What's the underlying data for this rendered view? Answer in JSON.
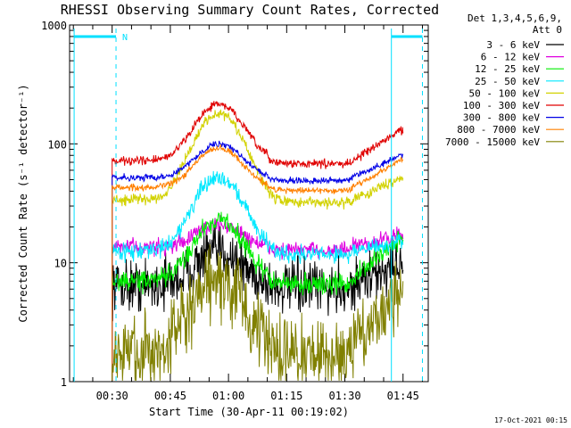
{
  "chart_data": {
    "type": "line",
    "title": "RHESSI Observing Summary Count Rates, Corrected",
    "xlabel": "Start Time (30-Apr-11 00:19:02)",
    "ylabel": "Corrected Count Rate (s⁻¹ detector⁻¹)",
    "yscale": "log",
    "ylim": [
      1,
      1000
    ],
    "xlim_minutes": [
      19.03,
      111.5
    ],
    "x_ticks": [
      {
        "m": 30,
        "label": "00:30"
      },
      {
        "m": 45,
        "label": "00:45"
      },
      {
        "m": 60,
        "label": "01:00"
      },
      {
        "m": 75,
        "label": "01:15"
      },
      {
        "m": 90,
        "label": "01:30"
      },
      {
        "m": 105,
        "label": "01:45"
      }
    ],
    "y_ticks": [
      {
        "v": 1,
        "label": "1"
      },
      {
        "v": 10,
        "label": "10"
      },
      {
        "v": 100,
        "label": "100"
      },
      {
        "v": 1000,
        "label": "1000"
      }
    ],
    "legend_header": [
      "Det 1,3,4,5,6,9,",
      "Att 0"
    ],
    "legend_position": "right",
    "series": [
      {
        "name": "3 - 6 keV",
        "color": "#000000",
        "baseline": 6.5,
        "peak": 12.5,
        "tail": 10,
        "noise": 0.25
      },
      {
        "name": "6 - 12 keV",
        "color": "#e000e0",
        "baseline": 13.5,
        "peak": 21,
        "tail": 17,
        "noise": 0.08
      },
      {
        "name": "12 - 25 keV",
        "color": "#00ee00",
        "baseline": 7,
        "peak": 23,
        "tail": 16,
        "noise": 0.1
      },
      {
        "name": "25 - 50 keV",
        "color": "#00e8ff",
        "baseline": 12.5,
        "peak": 52,
        "tail": 15,
        "noise": 0.08
      },
      {
        "name": "50 - 100 keV",
        "color": "#d2d200",
        "baseline": 34,
        "peak": 180,
        "tail": 52,
        "noise": 0.05
      },
      {
        "name": "100 - 300 keV",
        "color": "#e00000",
        "baseline": 72,
        "peak": 215,
        "tail": 130,
        "noise": 0.04
      },
      {
        "name": "300 - 800 keV",
        "color": "#0000e6",
        "baseline": 52,
        "peak": 100,
        "tail": 80,
        "noise": 0.03
      },
      {
        "name": "800 - 7000 keV",
        "color": "#ff8000",
        "baseline": 43,
        "peak": 92,
        "tail": 72,
        "noise": 0.03
      },
      {
        "name": "7000 - 15000 keV",
        "color": "#808000",
        "baseline": 1.8,
        "peak": 7,
        "tail": 6,
        "noise": 0.35
      }
    ],
    "data_start_minute": 30,
    "data_end_minute": 105,
    "annotations": [
      {
        "label": "N",
        "color": "#00e0ff"
      }
    ],
    "vertical_markers_minute": [
      20.2,
      31.0,
      102.0,
      110.0
    ],
    "timestamp": "17-Oct-2021 00:15"
  }
}
